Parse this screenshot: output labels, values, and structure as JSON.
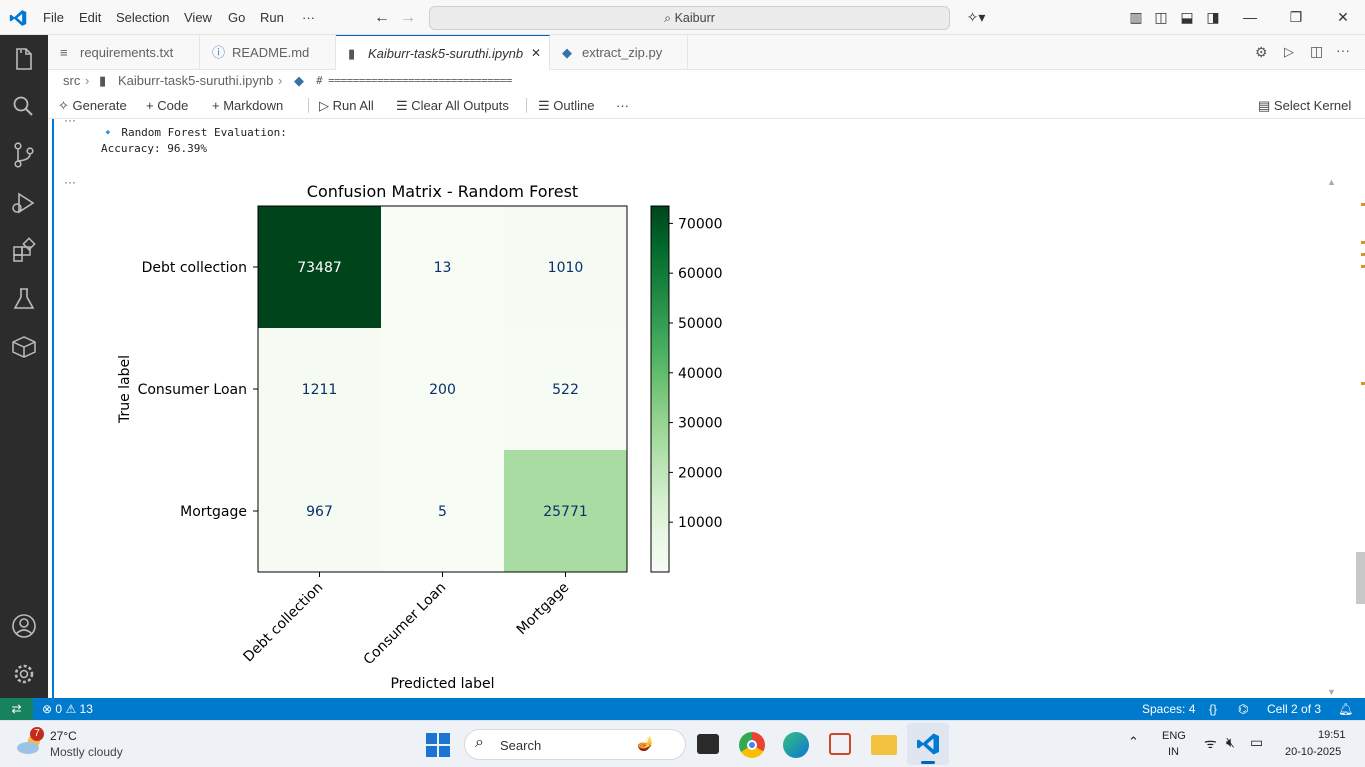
{
  "titlebar": {
    "menus": [
      "File",
      "Edit",
      "Selection",
      "View",
      "Go",
      "Run",
      "···"
    ],
    "search": "Kaiburr"
  },
  "tabs": [
    {
      "label": "requirements.txt",
      "icon": "lines-icon"
    },
    {
      "label": "README.md",
      "icon": "info-icon"
    },
    {
      "label": "Kaiburr-task5-suruthi.ipynb",
      "icon": "notebook-icon",
      "close": "✕"
    },
    {
      "label": "extract_zip.py",
      "icon": "python-icon"
    }
  ],
  "breadcrumb": {
    "items": [
      "src",
      "Kaiburr-task5-suruthi.ipynb",
      "# =============================="
    ]
  },
  "toolbar": {
    "generate": "Generate",
    "code": "Code",
    "markdown": "Markdown",
    "run_all": "Run All",
    "clear": "Clear All Outputs",
    "outline": "Outline",
    "more": "···",
    "kernel": "Select Kernel"
  },
  "output": {
    "top_ellipsis": "···",
    "line1": "🔹 Random Forest Evaluation:",
    "line2": "Accuracy: 96.39%",
    "ellipsis": "···"
  },
  "chart_data": {
    "type": "heatmap",
    "title": "Confusion Matrix - Random Forest",
    "xlabel": "Predicted label",
    "ylabel": "True label",
    "row_labels": [
      "Debt collection",
      "Consumer Loan",
      "Mortgage"
    ],
    "col_labels": [
      "Debt collection",
      "Consumer Loan",
      "Mortgage"
    ],
    "values": [
      [
        73487,
        13,
        1010
      ],
      [
        1211,
        200,
        522
      ],
      [
        967,
        5,
        25771
      ]
    ],
    "colormap": "Greens",
    "colorbar_ticks": [
      70000,
      60000,
      50000,
      40000,
      30000,
      20000,
      10000
    ],
    "colorbar_range": [
      0,
      73487
    ]
  },
  "statusbar": {
    "errors": "0",
    "warnings": "13",
    "spaces": "Spaces: 4",
    "braces": "{}",
    "cell": "Cell 2 of 3",
    "accent": "#007acc"
  },
  "taskbar": {
    "weather_badge": "7",
    "temp": "27°C",
    "weather": "Mostly cloudy",
    "search": "Search",
    "lang1": "ENG",
    "lang2": "IN",
    "time": "19:51",
    "date": "20-10-2025"
  }
}
